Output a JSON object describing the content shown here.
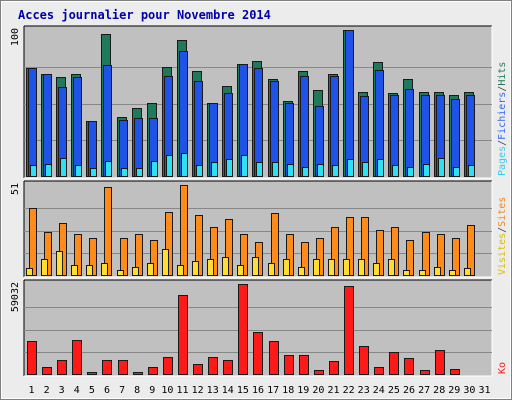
{
  "chart_data": {
    "type": "bar",
    "title": "Acces journalier pour Novembre 2014",
    "categories": [
      "1",
      "2",
      "3",
      "4",
      "5",
      "6",
      "7",
      "8",
      "9",
      "10",
      "11",
      "12",
      "13",
      "14",
      "15",
      "16",
      "17",
      "18",
      "19",
      "20",
      "21",
      "22",
      "23",
      "24",
      "25",
      "26",
      "27",
      "28",
      "29",
      "30",
      "31"
    ],
    "weekend_days": [
      "1",
      "2",
      "8",
      "9",
      "15",
      "16",
      "22",
      "23",
      "29",
      "30"
    ],
    "panels": [
      {
        "name": "pages-fichiers-hits",
        "ylabel_max": "100",
        "legend": [
          {
            "text": "Pages",
            "color": "#33ccee"
          },
          {
            "text": "/",
            "color": "#444444"
          },
          {
            "text": "Fichiers",
            "color": "#3366ee"
          },
          {
            "text": "/",
            "color": "#444444"
          },
          {
            "text": "Hits",
            "color": "#227755"
          }
        ],
        "series": [
          {
            "name": "Hits",
            "color": "#1e7a5a",
            "values": [
              74,
              70,
              68,
              70,
              38,
              97,
              41,
              47,
              50,
              75,
              93,
              72,
              50,
              62,
              77,
              79,
              67,
              52,
              72,
              59,
              70,
              100,
              58,
              78,
              57,
              67,
              58,
              58,
              56,
              58,
              0
            ]
          },
          {
            "name": "Fichiers",
            "color": "#1f52e6",
            "values": [
              74,
              70,
              61,
              68,
              38,
              76,
              39,
              40,
              40,
              69,
              86,
              65,
              50,
              57,
              77,
              74,
              65,
              50,
              69,
              48,
              69,
              100,
              55,
              73,
              56,
              60,
              56,
              56,
              53,
              56,
              0
            ]
          },
          {
            "name": "Pages",
            "color": "#2ee0f0",
            "values": [
              8,
              9,
              13,
              8,
              6,
              11,
              6,
              6,
              11,
              15,
              16,
              8,
              10,
              12,
              15,
              10,
              10,
              9,
              7,
              9,
              8,
              12,
              10,
              12,
              8,
              7,
              9,
              13,
              7,
              8,
              0
            ]
          }
        ]
      },
      {
        "name": "visites-sites",
        "ylabel_max": "51",
        "legend": [
          {
            "text": "Visites",
            "color": "#ddbb00"
          },
          {
            "text": "/",
            "color": "#444444"
          },
          {
            "text": "Sites",
            "color": "#ee8822"
          }
        ],
        "series": [
          {
            "name": "Sites",
            "color": "#ff8c1a",
            "values": [
              36,
              23,
              28,
              22,
              20,
              47,
              20,
              22,
              19,
              34,
              48,
              32,
              26,
              30,
              22,
              18,
              33,
              22,
              18,
              20,
              26,
              31,
              31,
              24,
              26,
              19,
              23,
              22,
              20,
              27,
              0
            ]
          },
          {
            "name": "Visites",
            "color": "#ffdd33",
            "values": [
              4,
              9,
              13,
              6,
              6,
              7,
              3,
              5,
              7,
              14,
              6,
              8,
              9,
              10,
              6,
              10,
              7,
              9,
              5,
              9,
              9,
              9,
              9,
              7,
              9,
              3,
              3,
              5,
              3,
              4,
              0
            ]
          }
        ]
      },
      {
        "name": "ko",
        "ylabel_max": "59032",
        "legend": [
          {
            "text": "Ko",
            "color": "#ee2222"
          }
        ],
        "series": [
          {
            "name": "Ko",
            "color": "#ff1a1a",
            "values": [
              22000,
              5000,
              10000,
              23000,
              2000,
              10000,
              10000,
              2000,
              5000,
              12000,
              52000,
              7000,
              12000,
              10000,
              59032,
              28000,
              22000,
              13000,
              13000,
              3000,
              9000,
              58000,
              19000,
              5000,
              15000,
              11000,
              3000,
              16000,
              4000,
              0,
              0
            ]
          }
        ]
      }
    ]
  }
}
